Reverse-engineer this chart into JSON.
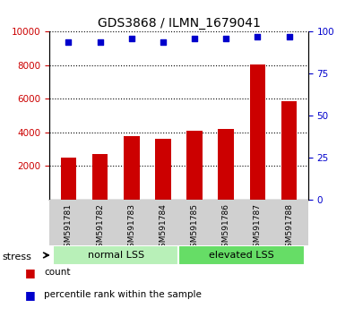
{
  "title": "GDS3868 / ILMN_1679041",
  "samples": [
    "GSM591781",
    "GSM591782",
    "GSM591783",
    "GSM591784",
    "GSM591785",
    "GSM591786",
    "GSM591787",
    "GSM591788"
  ],
  "counts": [
    2500,
    2700,
    3800,
    3600,
    4100,
    4200,
    8050,
    5850
  ],
  "percentile_ranks": [
    94,
    94,
    96,
    94,
    96,
    96,
    97,
    97
  ],
  "ylim_left": [
    0,
    10000
  ],
  "ylim_right": [
    0,
    100
  ],
  "yticks_left": [
    2000,
    4000,
    6000,
    8000,
    10000
  ],
  "yticks_right": [
    0,
    25,
    50,
    75,
    100
  ],
  "groups": [
    {
      "label": "normal LSS",
      "start": 0,
      "end": 4,
      "color": "#b8f0b8"
    },
    {
      "label": "elevated LSS",
      "start": 4,
      "end": 8,
      "color": "#66dd66"
    }
  ],
  "group_label_prefix": "stress",
  "bar_color": "#cc0000",
  "scatter_color": "#0000cc",
  "tick_color_left": "#cc0000",
  "tick_color_right": "#0000cc",
  "legend_items": [
    {
      "color": "#cc0000",
      "label": "count"
    },
    {
      "color": "#0000cc",
      "label": "percentile rank within the sample"
    }
  ],
  "background_color": "#d0d0d0",
  "plot_bg": "#ffffff"
}
